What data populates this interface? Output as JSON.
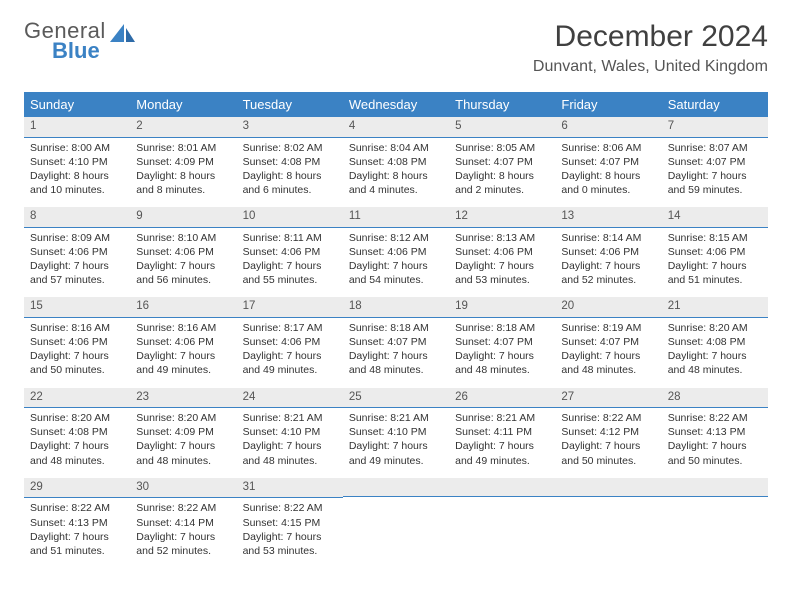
{
  "logo": {
    "general": "General",
    "blue": "Blue"
  },
  "title": "December 2024",
  "location": "Dunvant, Wales, United Kingdom",
  "colors": {
    "header_bg": "#3b82c4",
    "header_text": "#ffffff",
    "daynum_bg": "#ececec",
    "daynum_border": "#3b82c4",
    "text": "#333333",
    "logo_blue": "#3b82c4",
    "logo_gray": "#5a5a5a"
  },
  "weekdays": [
    "Sunday",
    "Monday",
    "Tuesday",
    "Wednesday",
    "Thursday",
    "Friday",
    "Saturday"
  ],
  "days": [
    {
      "n": "1",
      "sr": "8:00 AM",
      "ss": "4:10 PM",
      "dl": "8 hours and 10 minutes."
    },
    {
      "n": "2",
      "sr": "8:01 AM",
      "ss": "4:09 PM",
      "dl": "8 hours and 8 minutes."
    },
    {
      "n": "3",
      "sr": "8:02 AM",
      "ss": "4:08 PM",
      "dl": "8 hours and 6 minutes."
    },
    {
      "n": "4",
      "sr": "8:04 AM",
      "ss": "4:08 PM",
      "dl": "8 hours and 4 minutes."
    },
    {
      "n": "5",
      "sr": "8:05 AM",
      "ss": "4:07 PM",
      "dl": "8 hours and 2 minutes."
    },
    {
      "n": "6",
      "sr": "8:06 AM",
      "ss": "4:07 PM",
      "dl": "8 hours and 0 minutes."
    },
    {
      "n": "7",
      "sr": "8:07 AM",
      "ss": "4:07 PM",
      "dl": "7 hours and 59 minutes."
    },
    {
      "n": "8",
      "sr": "8:09 AM",
      "ss": "4:06 PM",
      "dl": "7 hours and 57 minutes."
    },
    {
      "n": "9",
      "sr": "8:10 AM",
      "ss": "4:06 PM",
      "dl": "7 hours and 56 minutes."
    },
    {
      "n": "10",
      "sr": "8:11 AM",
      "ss": "4:06 PM",
      "dl": "7 hours and 55 minutes."
    },
    {
      "n": "11",
      "sr": "8:12 AM",
      "ss": "4:06 PM",
      "dl": "7 hours and 54 minutes."
    },
    {
      "n": "12",
      "sr": "8:13 AM",
      "ss": "4:06 PM",
      "dl": "7 hours and 53 minutes."
    },
    {
      "n": "13",
      "sr": "8:14 AM",
      "ss": "4:06 PM",
      "dl": "7 hours and 52 minutes."
    },
    {
      "n": "14",
      "sr": "8:15 AM",
      "ss": "4:06 PM",
      "dl": "7 hours and 51 minutes."
    },
    {
      "n": "15",
      "sr": "8:16 AM",
      "ss": "4:06 PM",
      "dl": "7 hours and 50 minutes."
    },
    {
      "n": "16",
      "sr": "8:16 AM",
      "ss": "4:06 PM",
      "dl": "7 hours and 49 minutes."
    },
    {
      "n": "17",
      "sr": "8:17 AM",
      "ss": "4:06 PM",
      "dl": "7 hours and 49 minutes."
    },
    {
      "n": "18",
      "sr": "8:18 AM",
      "ss": "4:07 PM",
      "dl": "7 hours and 48 minutes."
    },
    {
      "n": "19",
      "sr": "8:18 AM",
      "ss": "4:07 PM",
      "dl": "7 hours and 48 minutes."
    },
    {
      "n": "20",
      "sr": "8:19 AM",
      "ss": "4:07 PM",
      "dl": "7 hours and 48 minutes."
    },
    {
      "n": "21",
      "sr": "8:20 AM",
      "ss": "4:08 PM",
      "dl": "7 hours and 48 minutes."
    },
    {
      "n": "22",
      "sr": "8:20 AM",
      "ss": "4:08 PM",
      "dl": "7 hours and 48 minutes."
    },
    {
      "n": "23",
      "sr": "8:20 AM",
      "ss": "4:09 PM",
      "dl": "7 hours and 48 minutes."
    },
    {
      "n": "24",
      "sr": "8:21 AM",
      "ss": "4:10 PM",
      "dl": "7 hours and 48 minutes."
    },
    {
      "n": "25",
      "sr": "8:21 AM",
      "ss": "4:10 PM",
      "dl": "7 hours and 49 minutes."
    },
    {
      "n": "26",
      "sr": "8:21 AM",
      "ss": "4:11 PM",
      "dl": "7 hours and 49 minutes."
    },
    {
      "n": "27",
      "sr": "8:22 AM",
      "ss": "4:12 PM",
      "dl": "7 hours and 50 minutes."
    },
    {
      "n": "28",
      "sr": "8:22 AM",
      "ss": "4:13 PM",
      "dl": "7 hours and 50 minutes."
    },
    {
      "n": "29",
      "sr": "8:22 AM",
      "ss": "4:13 PM",
      "dl": "7 hours and 51 minutes."
    },
    {
      "n": "30",
      "sr": "8:22 AM",
      "ss": "4:14 PM",
      "dl": "7 hours and 52 minutes."
    },
    {
      "n": "31",
      "sr": "8:22 AM",
      "ss": "4:15 PM",
      "dl": "7 hours and 53 minutes."
    }
  ],
  "labels": {
    "sunrise": "Sunrise:",
    "sunset": "Sunset:",
    "daylight": "Daylight:"
  }
}
